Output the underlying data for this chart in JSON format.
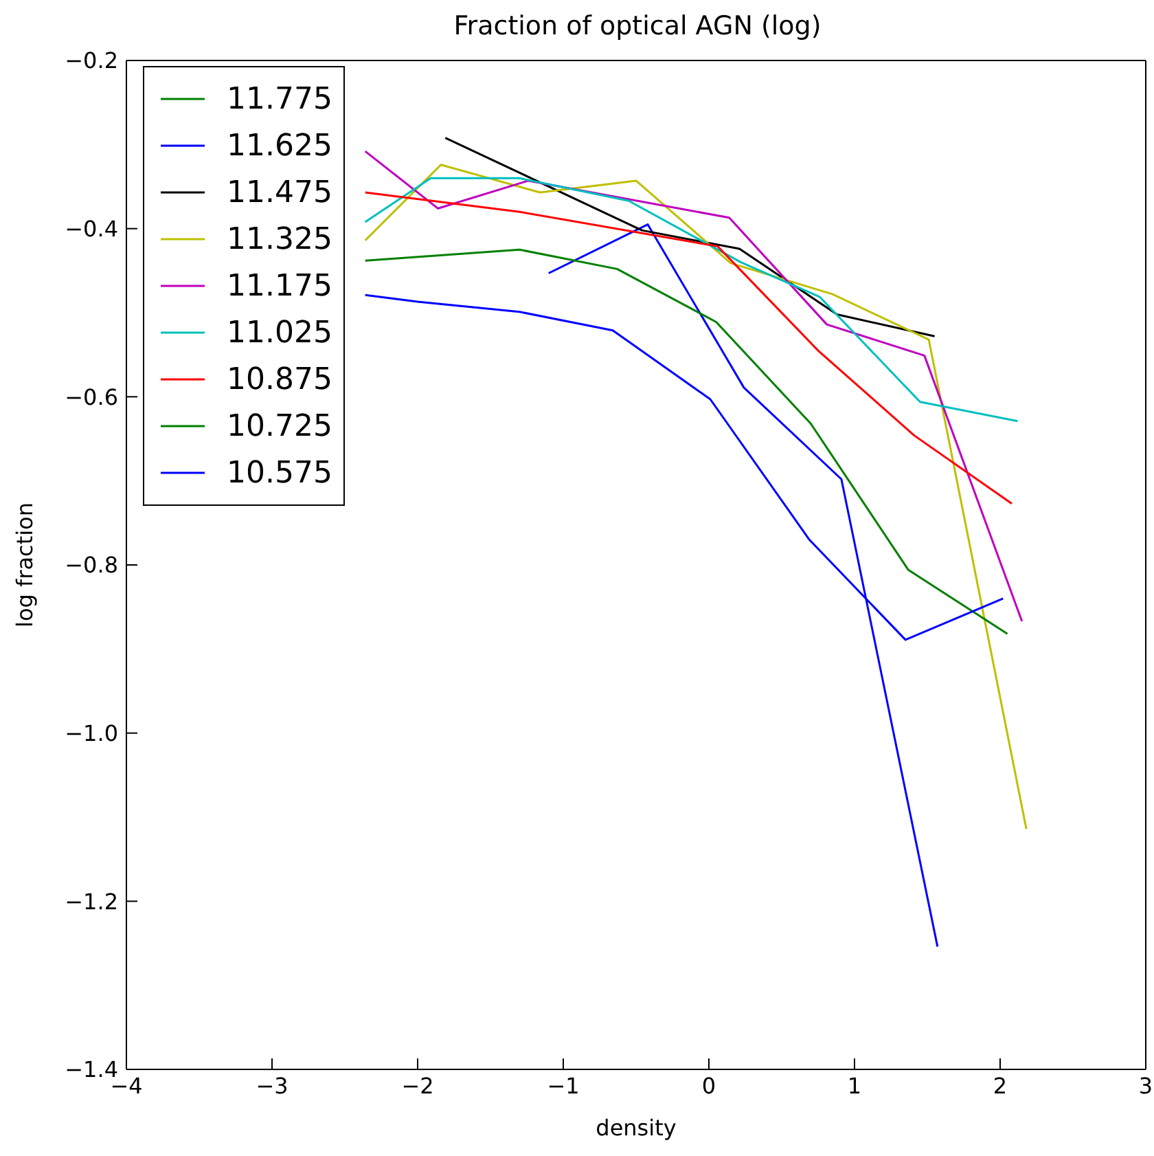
{
  "chart_data": {
    "type": "line",
    "title": "Fraction of optical AGN (log)",
    "xlabel": "density",
    "ylabel": "log fraction",
    "xlim": [
      -4,
      3
    ],
    "xticks": [
      {
        "value": -4,
        "label": "−4"
      },
      {
        "value": -3,
        "label": "−3"
      },
      {
        "value": -2,
        "label": "−2"
      },
      {
        "value": -1,
        "label": "−1"
      },
      0,
      1,
      2,
      3
    ],
    "ylim": [
      -1.4,
      -0.2
    ],
    "yticks": [
      {
        "value": -1.4,
        "label": "−1.4"
      },
      {
        "value": -1.2,
        "label": "−1.2"
      },
      {
        "value": -1.0,
        "label": "−1.0"
      },
      {
        "value": -0.8,
        "label": "−0.8"
      },
      {
        "value": -0.6,
        "label": "−0.6"
      },
      {
        "value": -0.4,
        "label": "−0.4"
      },
      {
        "value": -0.2,
        "label": "−0.2"
      }
    ],
    "grid": false,
    "legend": "top left",
    "marker": "none",
    "line_style": "solid",
    "series": [
      {
        "name": "11.775",
        "color": "#008000"
      },
      {
        "name": "11.625",
        "color": "#0000ff",
        "x": [
          -1.1,
          -0.42,
          0.24,
          0.91,
          1.57
        ],
        "values": [
          -0.453,
          -0.395,
          -0.589,
          -0.698,
          -1.254
        ]
      },
      {
        "name": "11.475",
        "color": "#000000",
        "x": [
          -1.81,
          -0.46,
          0.21,
          0.88,
          1.55
        ],
        "values": [
          -0.292,
          -0.402,
          -0.424,
          -0.502,
          -0.528
        ]
      },
      {
        "name": "11.325",
        "color": "#bfbf00",
        "x": [
          -2.36,
          -1.84,
          -1.16,
          -0.5,
          0.15,
          0.85,
          1.51,
          2.18
        ],
        "values": [
          -0.414,
          -0.324,
          -0.357,
          -0.343,
          -0.441,
          -0.478,
          -0.532,
          -1.114
        ]
      },
      {
        "name": "11.175",
        "color": "#bf00bf",
        "x": [
          -2.36,
          -1.86,
          -1.24,
          0.14,
          0.81,
          1.48,
          2.15
        ],
        "values": [
          -0.308,
          -0.376,
          -0.343,
          -0.387,
          -0.514,
          -0.551,
          -0.867
        ]
      },
      {
        "name": "11.025",
        "color": "#00bfbf",
        "x": [
          -2.36,
          -1.91,
          -1.3,
          -0.55,
          0.22,
          0.76,
          1.45,
          2.12
        ],
        "values": [
          -0.392,
          -0.34,
          -0.34,
          -0.367,
          -0.44,
          -0.481,
          -0.606,
          -0.629
        ]
      },
      {
        "name": "10.875",
        "color": "#ff0000",
        "x": [
          -2.36,
          -1.3,
          0.06,
          0.75,
          1.41,
          2.08
        ],
        "values": [
          -0.357,
          -0.38,
          -0.421,
          -0.545,
          -0.646,
          -0.727
        ]
      },
      {
        "name": "10.725",
        "color": "#008000",
        "x": [
          -2.36,
          -1.3,
          -0.63,
          0.05,
          0.7,
          1.37,
          2.05
        ],
        "values": [
          -0.438,
          -0.425,
          -0.448,
          -0.511,
          -0.632,
          -0.806,
          -0.882
        ]
      },
      {
        "name": "10.575",
        "color": "#0000ff",
        "x": [
          -2.36,
          -2.0,
          -1.3,
          -0.66,
          0.01,
          0.69,
          1.35,
          2.02
        ],
        "values": [
          -0.479,
          -0.487,
          -0.499,
          -0.521,
          -0.603,
          -0.77,
          -0.889,
          -0.84
        ]
      }
    ]
  }
}
